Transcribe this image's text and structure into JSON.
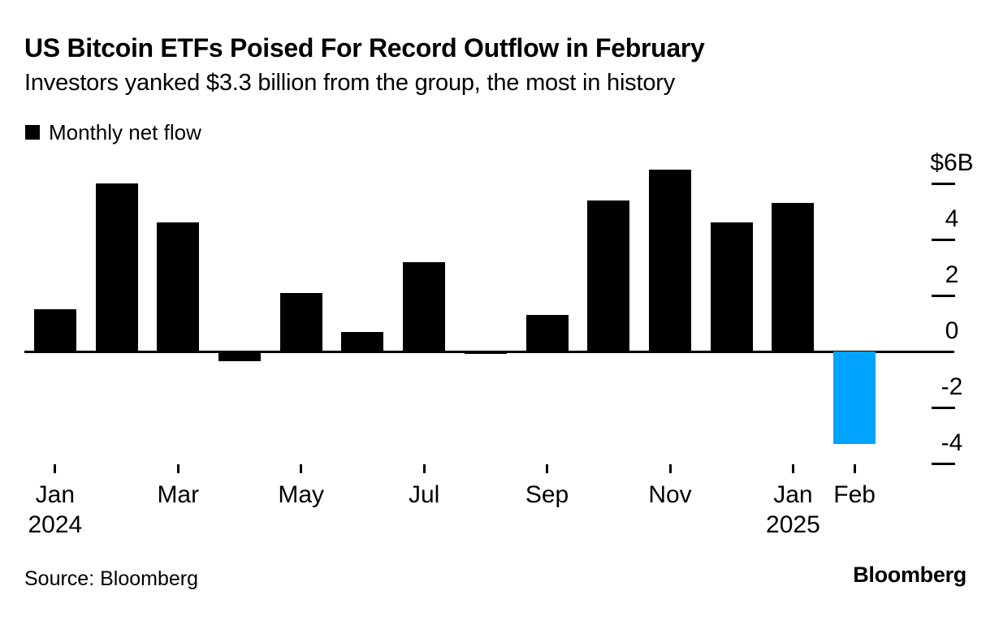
{
  "header": {
    "title": "US Bitcoin ETFs Poised For Record Outflow in February",
    "subtitle": "Investors yanked $3.3 billion from the group, the most in history"
  },
  "legend": {
    "label": "Monthly net flow",
    "swatch_color": "#000000"
  },
  "chart_data": {
    "type": "bar",
    "title": "US Bitcoin ETFs Poised For Record Outflow in February",
    "subtitle": "Investors yanked $3.3 billion from the group, the most in history",
    "series_name": "Monthly net flow",
    "unit": "billions of US dollars",
    "categories": [
      "Jan 2024",
      "Feb 2024",
      "Mar 2024",
      "Apr 2024",
      "May 2024",
      "Jun 2024",
      "Jul 2024",
      "Aug 2024",
      "Sep 2024",
      "Oct 2024",
      "Nov 2024",
      "Dec 2024",
      "Jan 2025",
      "Feb 2025"
    ],
    "values": [
      1.5,
      6.0,
      4.6,
      -0.35,
      2.1,
      0.7,
      3.2,
      -0.1,
      1.3,
      5.4,
      6.5,
      4.6,
      5.3,
      -3.3
    ],
    "ylim": [
      -4.5,
      7
    ],
    "grid": false,
    "legend_position": "top-left",
    "axis_position": "right",
    "bar_color": "#000000",
    "highlight": {
      "index": 13,
      "color": "#00a3ff"
    },
    "y_ticks": [
      {
        "value": 6,
        "label": "$6B"
      },
      {
        "value": 4,
        "label": "4"
      },
      {
        "value": 2,
        "label": "2"
      },
      {
        "value": 0,
        "label": "0"
      },
      {
        "value": -2,
        "label": "-2"
      },
      {
        "value": -4,
        "label": "-4"
      }
    ],
    "x_ticks": [
      {
        "index": 0,
        "label": "Jan",
        "year": "2024"
      },
      {
        "index": 2,
        "label": "Mar"
      },
      {
        "index": 4,
        "label": "May"
      },
      {
        "index": 6,
        "label": "Jul"
      },
      {
        "index": 8,
        "label": "Sep"
      },
      {
        "index": 10,
        "label": "Nov"
      },
      {
        "index": 12,
        "label": "Jan",
        "year": "2025"
      },
      {
        "index": 13,
        "label": "Feb"
      }
    ]
  },
  "footer": {
    "source": "Source: Bloomberg",
    "logo": "Bloomberg"
  }
}
